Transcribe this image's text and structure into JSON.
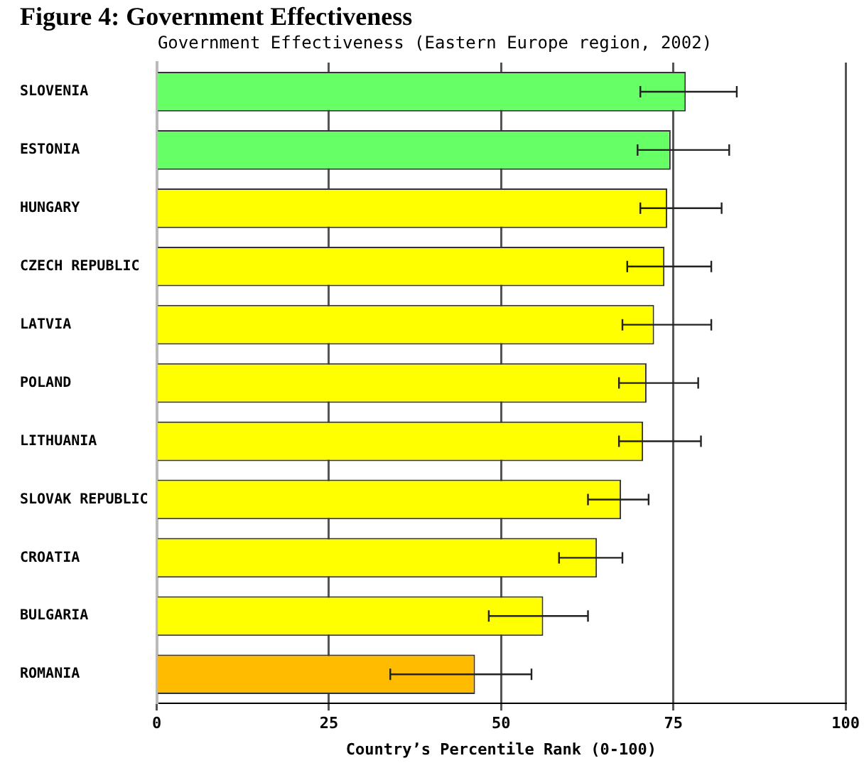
{
  "chart_data": {
    "type": "bar",
    "orientation": "horizontal",
    "title": "Figure 4: Government Effectiveness",
    "subtitle": "Government Effectiveness (Eastern Europe region, 2002)",
    "xlabel": "Country’s Percentile Rank (0-100)",
    "categories": [
      "SLOVENIA",
      "ESTONIA",
      "HUNGARY",
      "CZECH REPUBLIC",
      "LATVIA",
      "POLAND",
      "LITHUANIA",
      "SLOVAK REPUBLIC",
      "CROATIA",
      "BULGARIA",
      "ROMANIA"
    ],
    "values": [
      76.8,
      74.6,
      74.1,
      73.7,
      72.2,
      71.1,
      70.6,
      67.4,
      63.9,
      56.1,
      46.2
    ],
    "errors": [
      [
        70.2,
        84.2
      ],
      [
        69.8,
        83.1
      ],
      [
        70.2,
        82.0
      ],
      [
        68.3,
        80.5
      ],
      [
        67.6,
        80.5
      ],
      [
        67.1,
        78.6
      ],
      [
        67.1,
        79.0
      ],
      [
        62.6,
        71.4
      ],
      [
        58.4,
        67.6
      ],
      [
        48.2,
        62.6
      ],
      [
        33.9,
        54.4
      ]
    ],
    "colors": [
      "#66ff66",
      "#66ff66",
      "#ffff00",
      "#ffff00",
      "#ffff00",
      "#ffff00",
      "#ffff00",
      "#ffff00",
      "#ffff00",
      "#ffff00",
      "#ffbb00"
    ],
    "xlim": [
      0,
      100
    ],
    "xticks": [
      0,
      25,
      50,
      75,
      100
    ],
    "grid": "x",
    "legend": false
  }
}
